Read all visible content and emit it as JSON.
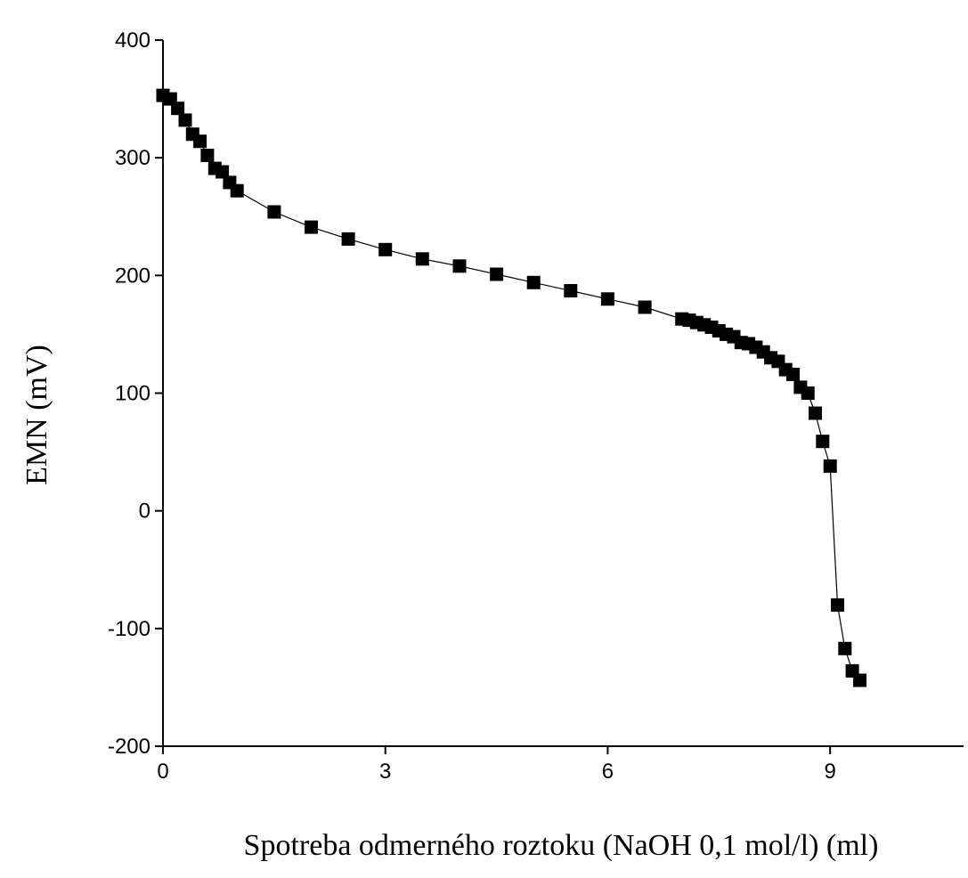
{
  "chart_data": {
    "type": "scatter",
    "title": "",
    "xlabel": "Spotreba odmerného roztoku (NaOH 0,1 mol/l) (ml)",
    "ylabel": "EMN (mV)",
    "xlim": [
      0,
      10.8
    ],
    "ylim": [
      -200,
      400
    ],
    "x_ticks": [
      "0",
      "3",
      "6",
      "9"
    ],
    "y_ticks": [
      "400",
      "300",
      "200",
      "100",
      "0",
      "-100",
      "-200"
    ],
    "grid": false,
    "legend": "none",
    "marker": "square",
    "connected_line": true,
    "color": "#000000",
    "series": [
      {
        "points": [
          [
            0.0,
            353
          ],
          [
            0.1,
            350
          ],
          [
            0.2,
            342
          ],
          [
            0.3,
            332
          ],
          [
            0.4,
            320
          ],
          [
            0.5,
            314
          ],
          [
            0.6,
            302
          ],
          [
            0.7,
            291
          ],
          [
            0.8,
            288
          ],
          [
            0.9,
            279
          ],
          [
            1.0,
            272
          ],
          [
            1.5,
            254
          ],
          [
            2.0,
            241
          ],
          [
            2.5,
            231
          ],
          [
            3.0,
            222
          ],
          [
            3.5,
            214
          ],
          [
            4.0,
            208
          ],
          [
            4.5,
            201
          ],
          [
            5.0,
            194
          ],
          [
            5.5,
            187
          ],
          [
            6.0,
            180
          ],
          [
            6.5,
            173
          ],
          [
            7.0,
            163
          ],
          [
            7.1,
            162
          ],
          [
            7.2,
            160
          ],
          [
            7.3,
            158
          ],
          [
            7.4,
            156
          ],
          [
            7.5,
            153
          ],
          [
            7.6,
            150
          ],
          [
            7.7,
            148
          ],
          [
            7.8,
            143
          ],
          [
            7.9,
            142
          ],
          [
            8.0,
            139
          ],
          [
            8.1,
            135
          ],
          [
            8.2,
            130
          ],
          [
            8.3,
            127
          ],
          [
            8.4,
            120
          ],
          [
            8.5,
            116
          ],
          [
            8.6,
            105
          ],
          [
            8.7,
            100
          ],
          [
            8.8,
            83
          ],
          [
            8.9,
            59
          ],
          [
            9.0,
            38
          ],
          [
            9.1,
            -80
          ],
          [
            9.2,
            -117
          ],
          [
            9.3,
            -136
          ],
          [
            9.4,
            -144
          ]
        ]
      }
    ]
  }
}
